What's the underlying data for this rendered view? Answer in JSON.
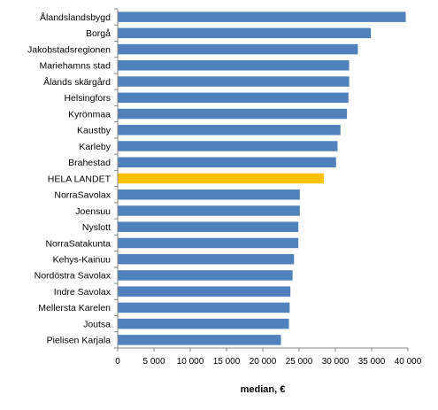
{
  "chart_data": {
    "type": "bar",
    "orientation": "horizontal",
    "categories": [
      "Ålandslandsbygd",
      "Borgå",
      "Jakobstadsregionen",
      "Mariehamns stad",
      "Ålands skärgård",
      "Helsingfors",
      "Kyrönmaa",
      "Kaustby",
      "Karleby",
      "Brahestad",
      "HELA LANDET",
      "NorraSavolax",
      "Joensuu",
      "Nyslott",
      "NorraSatakunta",
      "Kehys-Kainuu",
      "Nordöstra Savolax",
      "Indre Savolax",
      "Mellersta Karelen",
      "Joutsa",
      "Pielisen Karjala"
    ],
    "values": [
      39700,
      34900,
      33100,
      31900,
      31900,
      31800,
      31600,
      30700,
      30300,
      30100,
      28400,
      25100,
      25100,
      24900,
      24900,
      24300,
      24100,
      23800,
      23700,
      23600,
      22500
    ],
    "highlight_index": 10,
    "bar_color": "#4F81BD",
    "highlight_color": "#FFC000",
    "xlabel": "median, €",
    "ylabel": "",
    "xlim": [
      0,
      40000
    ],
    "xticks": [
      0,
      5000,
      10000,
      15000,
      20000,
      25000,
      30000,
      35000,
      40000
    ],
    "xtick_labels": [
      "0",
      "5 000",
      "10 000",
      "15 000",
      "20 000",
      "25 000",
      "30 000",
      "35 000",
      "40 000"
    ],
    "grid": false,
    "legend": false
  }
}
